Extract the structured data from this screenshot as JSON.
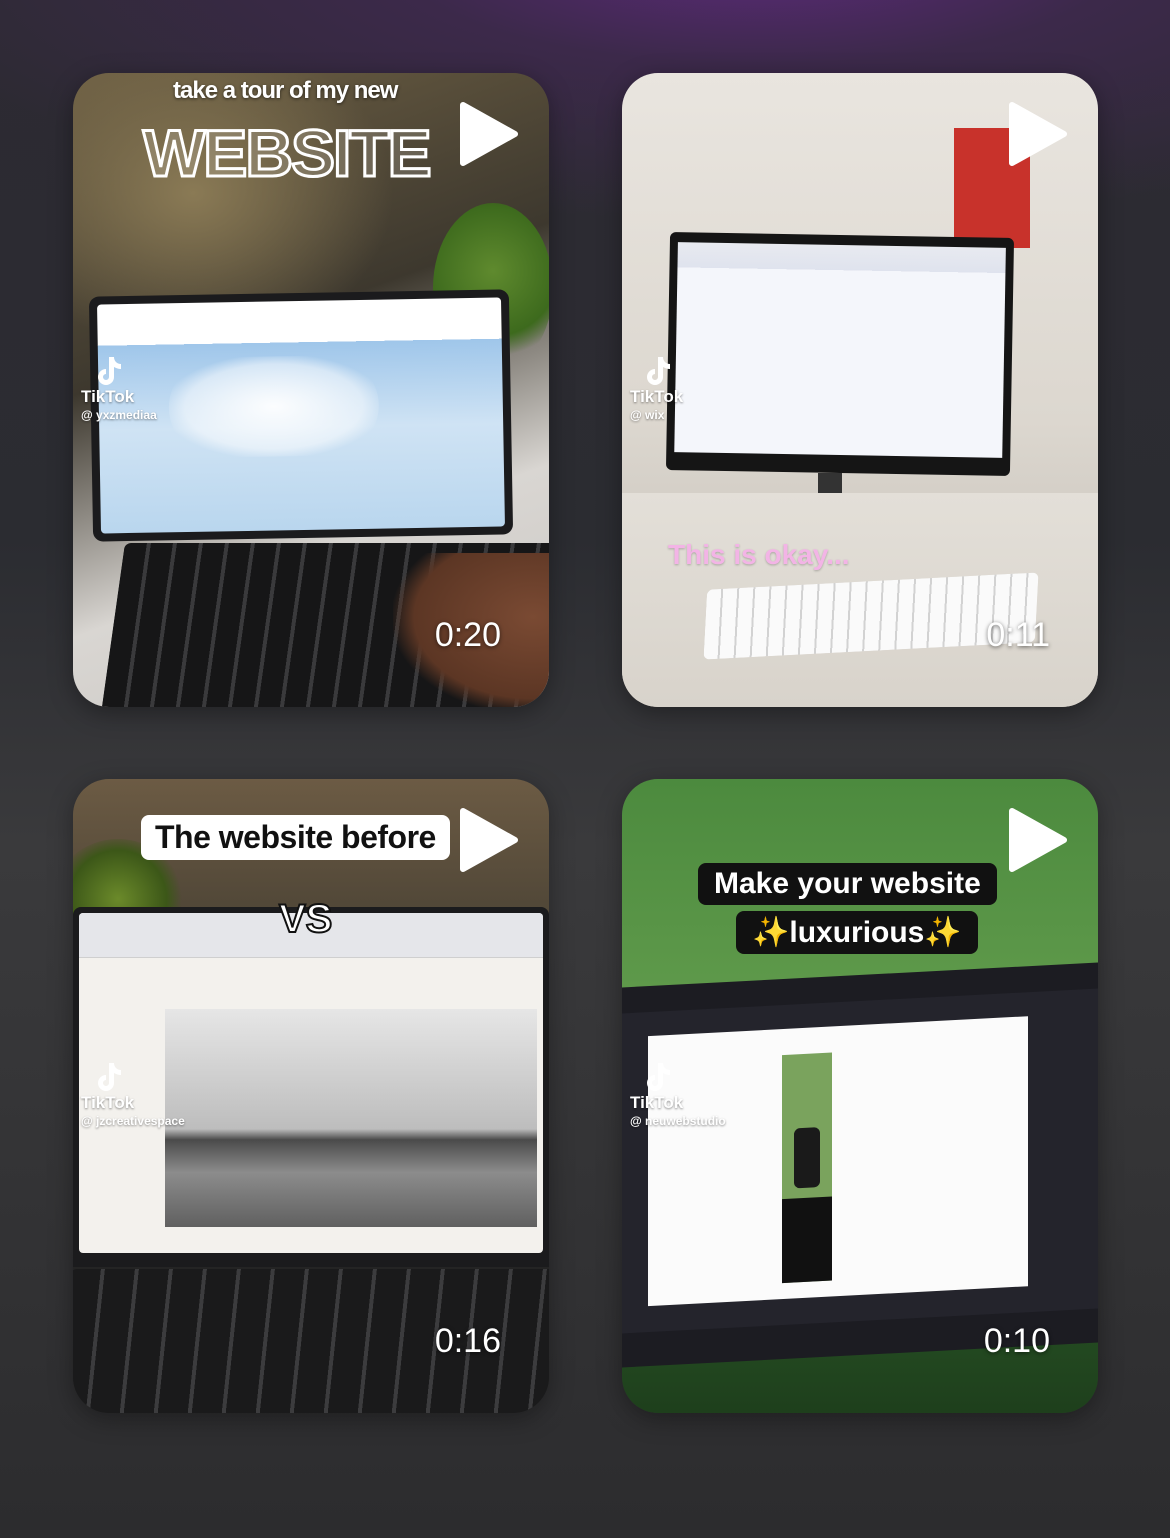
{
  "cards": [
    {
      "caption_top": "take a tour of my new",
      "caption_big": "WEBSITE",
      "tiktok_label": "TikTok",
      "handle": "@ yxzmediaa",
      "duration": "0:20"
    },
    {
      "caption": "This is okay...",
      "tiktok_label": "TikTok",
      "handle": "@ wix",
      "duration": "0:11"
    },
    {
      "caption": "The website before",
      "caption_vs": "VS",
      "tiktok_label": "TikTok",
      "handle": "@ jzcreativespace",
      "duration": "0:16"
    },
    {
      "caption_line1": "Make your website",
      "caption_line2": "✨luxurious✨",
      "tiktok_label": "TikTok",
      "handle": "@ neuwebstudio",
      "duration": "0:10"
    }
  ]
}
